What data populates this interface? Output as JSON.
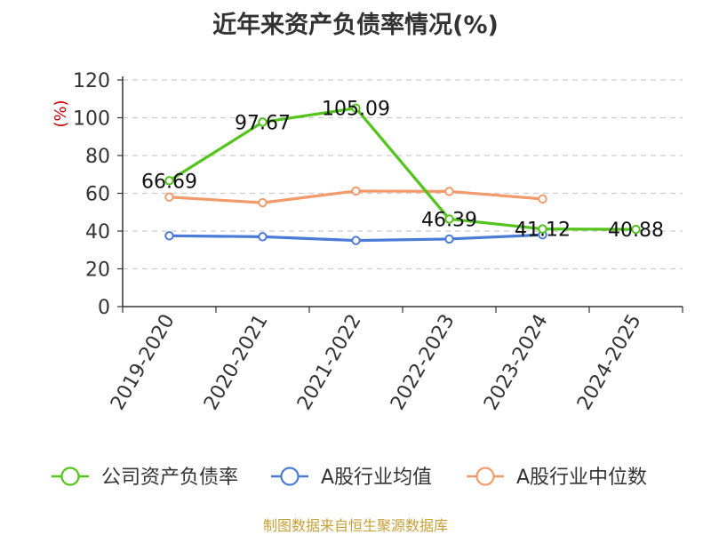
{
  "title": "近年来资产负债率情况(%)",
  "source": "制图数据来自恒生聚源数据库",
  "chart_data": {
    "type": "line",
    "categories": [
      "2019-2020",
      "2020-2021",
      "2021-2022",
      "2022-2023",
      "2023-2024",
      "2024-2025"
    ],
    "ylabel": "(%)",
    "ylim": [
      0,
      120
    ],
    "yticks": [
      0,
      20,
      40,
      60,
      80,
      100,
      120
    ],
    "grid": "horizontal-dashed",
    "legend_position": "bottom",
    "series": [
      {
        "name": "公司资产负债率",
        "color": "#52c41a",
        "values": [
          66.69,
          97.67,
          105.09,
          46.39,
          41.12,
          40.88
        ],
        "labels": [
          "66.69",
          "97.67",
          "105.09",
          "46.39",
          "41.12",
          "40.88"
        ]
      },
      {
        "name": "A股行业均值",
        "color": "#4a7bd6",
        "values": [
          37.5,
          37.0,
          35.0,
          35.8,
          38.0,
          null
        ]
      },
      {
        "name": "A股行业中位数",
        "color": "#f39a6b",
        "values": [
          58.0,
          55.0,
          61.2,
          61.0,
          57.0,
          null
        ]
      }
    ]
  }
}
